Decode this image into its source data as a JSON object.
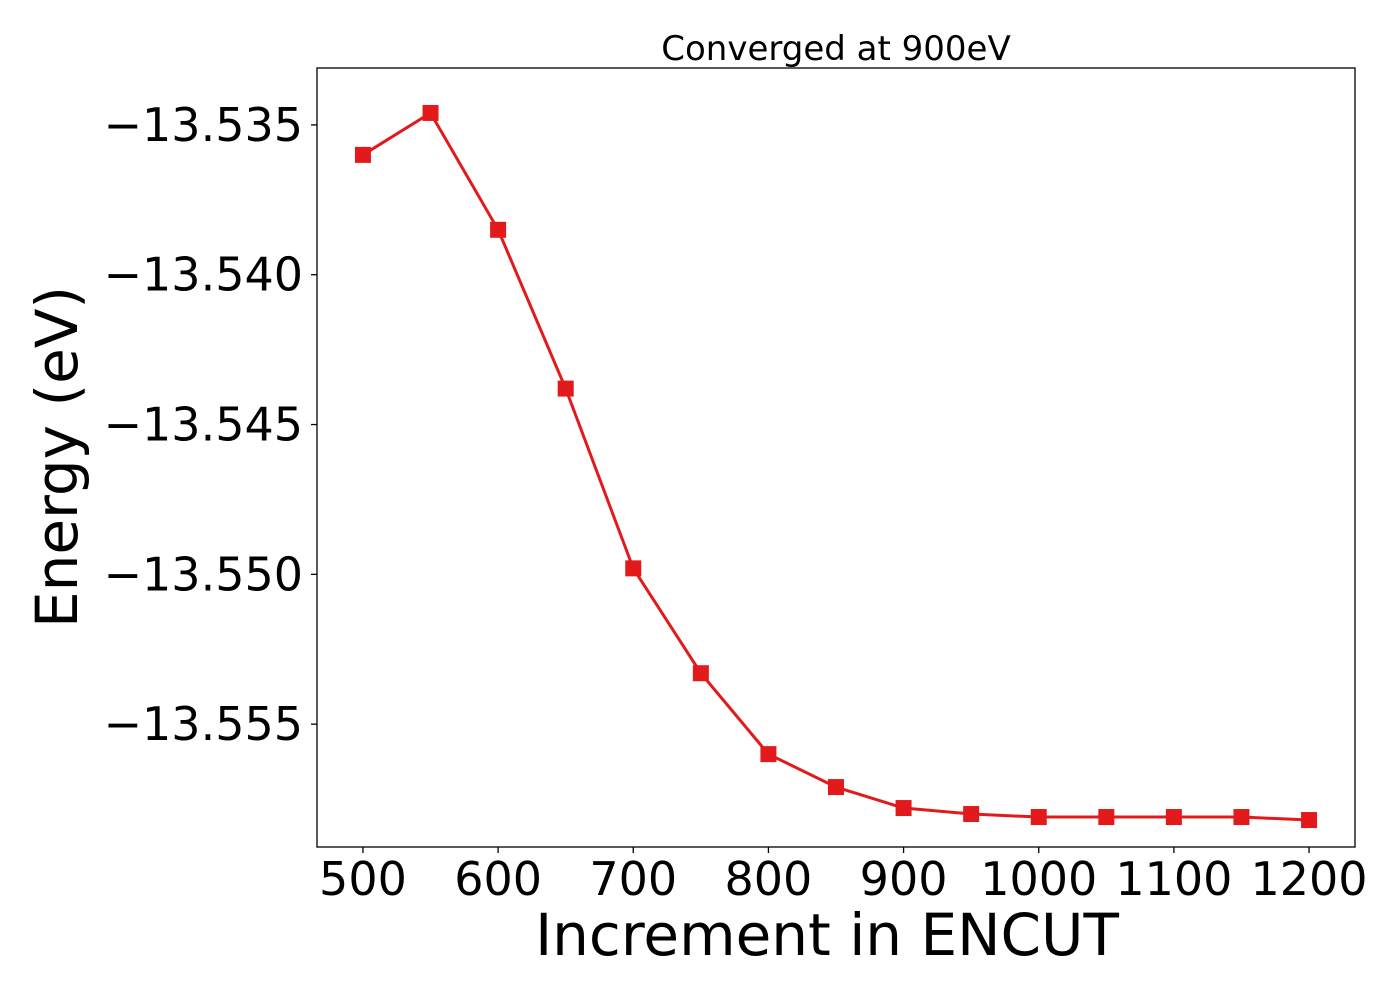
{
  "chart_data": {
    "type": "line",
    "title": "Converged at 900eV",
    "xlabel": "Increment in ENCUT",
    "ylabel": "Energy (eV)",
    "x": [
      500,
      550,
      600,
      650,
      700,
      750,
      800,
      850,
      900,
      950,
      1000,
      1050,
      1100,
      1150,
      1200
    ],
    "series": [
      {
        "color": "#e31a1c",
        "marker": "square",
        "values": [
          -13.536,
          -13.5346,
          -13.5385,
          -13.5438,
          -13.5498,
          -13.5533,
          -13.556,
          -13.5571,
          -13.5578,
          -13.558,
          -13.5581,
          -13.5581,
          -13.5581,
          -13.5581,
          -13.5582
        ]
      }
    ],
    "xticks": [
      500,
      600,
      700,
      800,
      900,
      1000,
      1100,
      1200
    ],
    "xtick_labels": [
      "500",
      "600",
      "700",
      "800",
      "900",
      "1000",
      "1100",
      "1200"
    ],
    "yticks": [
      -13.535,
      -13.54,
      -13.545,
      -13.55,
      -13.555
    ],
    "ytick_labels": [
      "−13.535",
      "−13.540",
      "−13.545",
      "−13.550",
      "−13.555"
    ],
    "xlim": [
      466,
      1234
    ],
    "ylim": [
      -13.5591,
      -13.5331
    ],
    "grid": false,
    "legend": "none"
  }
}
